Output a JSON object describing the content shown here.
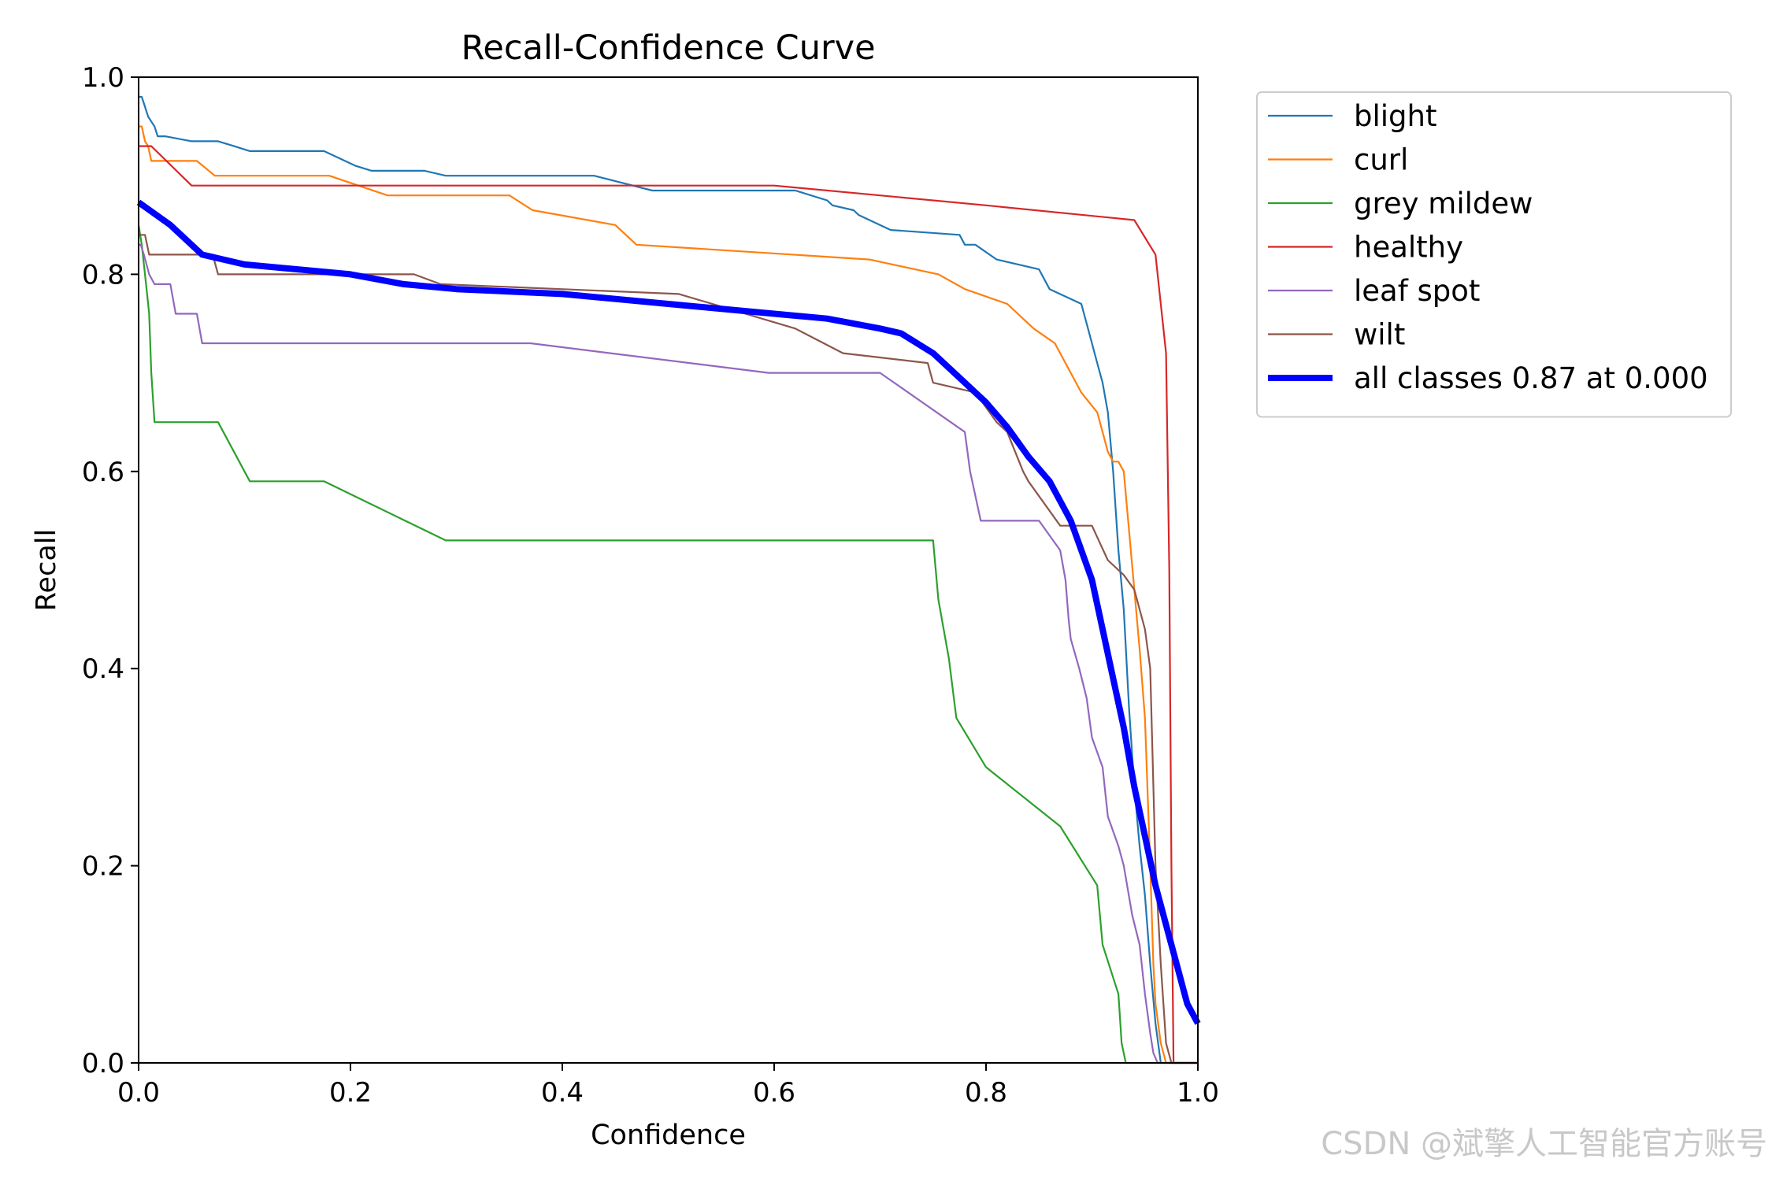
{
  "chart_data": {
    "type": "line",
    "title": "Recall-Confidence Curve",
    "xlabel": "Confidence",
    "ylabel": "Recall",
    "xlim": [
      0,
      1
    ],
    "ylim": [
      0,
      1
    ],
    "xticks": [
      "0.0",
      "0.2",
      "0.4",
      "0.6",
      "0.8",
      "1.0"
    ],
    "yticks": [
      "0.0",
      "0.2",
      "0.4",
      "0.6",
      "0.8",
      "1.0"
    ],
    "grid": false,
    "legend_position": "outside-top-right",
    "series": [
      {
        "name": "blight",
        "color": "#1f77b4",
        "width": 1,
        "x": [
          0,
          0.003,
          0.006,
          0.009,
          0.012,
          0.015,
          0.018,
          0.025,
          0.05,
          0.075,
          0.09,
          0.105,
          0.175,
          0.205,
          0.22,
          0.27,
          0.29,
          0.43,
          0.485,
          0.62,
          0.65,
          0.655,
          0.675,
          0.68,
          0.69,
          0.71,
          0.775,
          0.78,
          0.79,
          0.81,
          0.85,
          0.855,
          0.86,
          0.88,
          0.89,
          0.895,
          0.9,
          0.905,
          0.91,
          0.915,
          0.92,
          0.925,
          0.93,
          0.935,
          0.94,
          0.945,
          0.95,
          0.955,
          0.96,
          0.965,
          0.97,
          0.975,
          1.0
        ],
        "y": [
          0.98,
          0.98,
          0.97,
          0.96,
          0.955,
          0.95,
          0.94,
          0.94,
          0.935,
          0.935,
          0.93,
          0.925,
          0.925,
          0.91,
          0.905,
          0.905,
          0.9,
          0.9,
          0.885,
          0.885,
          0.875,
          0.87,
          0.865,
          0.86,
          0.855,
          0.845,
          0.84,
          0.83,
          0.83,
          0.815,
          0.805,
          0.795,
          0.785,
          0.775,
          0.77,
          0.75,
          0.73,
          0.71,
          0.69,
          0.66,
          0.6,
          0.52,
          0.46,
          0.36,
          0.28,
          0.22,
          0.17,
          0.1,
          0.04,
          0,
          0,
          0,
          0
        ]
      },
      {
        "name": "curl",
        "color": "#ff7f0e",
        "width": 1,
        "x": [
          0,
          0.003,
          0.006,
          0.009,
          0.012,
          0.055,
          0.072,
          0.18,
          0.235,
          0.35,
          0.372,
          0.45,
          0.47,
          0.69,
          0.755,
          0.78,
          0.82,
          0.845,
          0.865,
          0.875,
          0.88,
          0.89,
          0.905,
          0.91,
          0.915,
          0.92,
          0.925,
          0.93,
          0.935,
          0.94,
          0.945,
          0.95,
          0.955,
          0.958,
          0.96,
          0.965,
          0.97,
          0.975,
          1.0
        ],
        "y": [
          0.95,
          0.95,
          0.935,
          0.93,
          0.915,
          0.915,
          0.9,
          0.9,
          0.88,
          0.88,
          0.865,
          0.85,
          0.83,
          0.815,
          0.8,
          0.785,
          0.77,
          0.745,
          0.73,
          0.71,
          0.7,
          0.68,
          0.66,
          0.64,
          0.62,
          0.61,
          0.61,
          0.6,
          0.54,
          0.48,
          0.42,
          0.35,
          0.2,
          0.1,
          0.06,
          0.02,
          0,
          0,
          0
        ]
      },
      {
        "name": "grey mildew",
        "color": "#2ca02c",
        "width": 1,
        "x": [
          0,
          0.003,
          0.006,
          0.009,
          0.01,
          0.012,
          0.015,
          0.075,
          0.105,
          0.175,
          0.29,
          0.56,
          0.75,
          0.755,
          0.765,
          0.772,
          0.8,
          0.87,
          0.905,
          0.91,
          0.925,
          0.928,
          0.932,
          0.94,
          1.0
        ],
        "y": [
          0.85,
          0.83,
          0.8,
          0.77,
          0.76,
          0.7,
          0.65,
          0.65,
          0.59,
          0.59,
          0.53,
          0.53,
          0.53,
          0.47,
          0.41,
          0.35,
          0.3,
          0.24,
          0.18,
          0.12,
          0.07,
          0.02,
          0,
          0,
          0
        ]
      },
      {
        "name": "healthy",
        "color": "#d62728",
        "width": 1,
        "x": [
          0,
          0.012,
          0.05,
          0.3,
          0.6,
          0.7,
          0.8,
          0.94,
          0.96,
          0.965,
          0.97,
          0.973,
          0.975,
          0.977,
          1.0
        ],
        "y": [
          0.93,
          0.93,
          0.89,
          0.89,
          0.89,
          0.88,
          0.87,
          0.855,
          0.82,
          0.77,
          0.72,
          0.5,
          0.2,
          0,
          0
        ]
      },
      {
        "name": "leaf spot",
        "color": "#9467bd",
        "width": 1,
        "x": [
          0,
          0.002,
          0.005,
          0.01,
          0.015,
          0.03,
          0.035,
          0.055,
          0.06,
          0.095,
          0.37,
          0.595,
          0.7,
          0.78,
          0.785,
          0.795,
          0.81,
          0.85,
          0.87,
          0.875,
          0.878,
          0.88,
          0.888,
          0.895,
          0.9,
          0.91,
          0.915,
          0.925,
          0.93,
          0.938,
          0.945,
          0.95,
          0.955,
          0.958,
          0.962,
          1.0
        ],
        "y": [
          0.83,
          0.83,
          0.82,
          0.8,
          0.79,
          0.79,
          0.76,
          0.76,
          0.73,
          0.73,
          0.73,
          0.7,
          0.7,
          0.64,
          0.6,
          0.55,
          0.55,
          0.55,
          0.52,
          0.49,
          0.45,
          0.43,
          0.4,
          0.37,
          0.33,
          0.3,
          0.25,
          0.22,
          0.2,
          0.15,
          0.12,
          0.07,
          0.03,
          0.01,
          0,
          0
        ]
      },
      {
        "name": "wilt",
        "color": "#8c564b",
        "width": 1,
        "x": [
          0,
          0.002,
          0.006,
          0.01,
          0.035,
          0.07,
          0.075,
          0.26,
          0.285,
          0.51,
          0.62,
          0.665,
          0.745,
          0.75,
          0.79,
          0.81,
          0.82,
          0.835,
          0.84,
          0.87,
          0.89,
          0.9,
          0.915,
          0.93,
          0.94,
          0.95,
          0.955,
          0.96,
          0.965,
          0.97,
          0.975,
          1.0
        ],
        "y": [
          0.84,
          0.84,
          0.84,
          0.82,
          0.82,
          0.82,
          0.8,
          0.8,
          0.79,
          0.78,
          0.745,
          0.72,
          0.71,
          0.69,
          0.68,
          0.65,
          0.64,
          0.6,
          0.59,
          0.545,
          0.545,
          0.545,
          0.51,
          0.495,
          0.48,
          0.44,
          0.4,
          0.2,
          0.1,
          0.02,
          0,
          0
        ]
      },
      {
        "name": "all classes 0.87 at 0.000",
        "color": "#0000ff",
        "width": 4,
        "x": [
          0,
          0.03,
          0.06,
          0.1,
          0.15,
          0.2,
          0.25,
          0.3,
          0.4,
          0.5,
          0.6,
          0.65,
          0.7,
          0.72,
          0.75,
          0.78,
          0.8,
          0.82,
          0.84,
          0.86,
          0.88,
          0.9,
          0.91,
          0.92,
          0.93,
          0.94,
          0.95,
          0.96,
          0.97,
          0.98,
          0.99,
          1.0
        ],
        "y": [
          0.873,
          0.85,
          0.82,
          0.81,
          0.805,
          0.8,
          0.79,
          0.785,
          0.78,
          0.77,
          0.76,
          0.755,
          0.745,
          0.74,
          0.72,
          0.69,
          0.67,
          0.645,
          0.615,
          0.59,
          0.55,
          0.49,
          0.44,
          0.39,
          0.34,
          0.28,
          0.23,
          0.18,
          0.14,
          0.1,
          0.06,
          0.04
        ]
      }
    ]
  },
  "watermark": "CSDN @斌擎人工智能官方账号"
}
